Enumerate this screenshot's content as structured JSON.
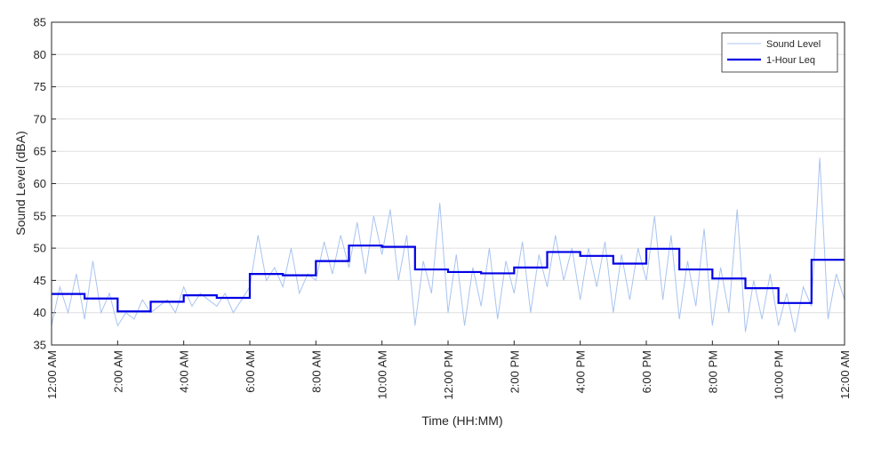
{
  "chart_data": {
    "type": "line",
    "xlabel": "Time (HH:MM)",
    "ylabel": "Sound Level (dBA)",
    "xlim": [
      0,
      24
    ],
    "ylim": [
      35,
      85
    ],
    "xticks": [
      {
        "value": 0,
        "label": "12:00 AM"
      },
      {
        "value": 2,
        "label": "2:00 AM"
      },
      {
        "value": 4,
        "label": "4:00 AM"
      },
      {
        "value": 6,
        "label": "6:00 AM"
      },
      {
        "value": 8,
        "label": "8:00 AM"
      },
      {
        "value": 10,
        "label": "10:00 AM"
      },
      {
        "value": 12,
        "label": "12:00 PM"
      },
      {
        "value": 14,
        "label": "2:00 PM"
      },
      {
        "value": 16,
        "label": "4:00 PM"
      },
      {
        "value": 18,
        "label": "6:00 PM"
      },
      {
        "value": 20,
        "label": "8:00 PM"
      },
      {
        "value": 22,
        "label": "10:00 PM"
      },
      {
        "value": 24,
        "label": "12:00 AM"
      }
    ],
    "yticks": [
      35,
      40,
      45,
      50,
      55,
      60,
      65,
      70,
      75,
      80,
      85
    ],
    "grid": "y",
    "legend": "upper right",
    "series": [
      {
        "name": "Sound Level",
        "color": "#a9c4f0",
        "width": 1,
        "step": false,
        "x": [
          0,
          0.25,
          0.5,
          0.75,
          1,
          1.25,
          1.5,
          1.75,
          2,
          2.25,
          2.5,
          2.75,
          3,
          3.25,
          3.5,
          3.75,
          4,
          4.25,
          4.5,
          4.75,
          5,
          5.25,
          5.5,
          5.75,
          6,
          6.25,
          6.5,
          6.75,
          7,
          7.25,
          7.5,
          7.75,
          8,
          8.25,
          8.5,
          8.75,
          9,
          9.25,
          9.5,
          9.75,
          10,
          10.25,
          10.5,
          10.75,
          11,
          11.25,
          11.5,
          11.75,
          12,
          12.25,
          12.5,
          12.75,
          13,
          13.25,
          13.5,
          13.75,
          14,
          14.25,
          14.5,
          14.75,
          15,
          15.25,
          15.5,
          15.75,
          16,
          16.25,
          16.5,
          16.75,
          17,
          17.25,
          17.5,
          17.75,
          18,
          18.25,
          18.5,
          18.75,
          19,
          19.25,
          19.5,
          19.75,
          20,
          20.25,
          20.5,
          20.75,
          21,
          21.25,
          21.5,
          21.75,
          22,
          22.25,
          22.5,
          22.75,
          23,
          23.25,
          23.5,
          23.75,
          24
        ],
        "values": [
          38,
          44,
          40,
          46,
          39,
          48,
          40,
          43,
          38,
          40,
          39,
          42,
          40,
          41,
          42,
          40,
          44,
          41,
          43,
          42,
          41,
          43,
          40,
          42,
          44,
          52,
          45,
          47,
          44,
          50,
          43,
          46,
          45,
          51,
          46,
          52,
          47,
          54,
          46,
          55,
          49,
          56,
          45,
          52,
          38,
          48,
          43,
          57,
          40,
          49,
          38,
          47,
          41,
          50,
          39,
          48,
          43,
          51,
          40,
          49,
          44,
          52,
          45,
          50,
          42,
          50,
          44,
          51,
          40,
          49,
          42,
          50,
          45,
          55,
          42,
          52,
          39,
          48,
          41,
          53,
          38,
          47,
          40,
          56,
          37,
          45,
          39,
          46,
          38,
          43,
          37,
          44,
          41,
          64,
          39,
          46,
          42
        ]
      },
      {
        "name": "1-Hour Leq",
        "color": "#0000e6",
        "width": 2.2,
        "step": true,
        "x": [
          0,
          1,
          2,
          3,
          4,
          5,
          6,
          7,
          8,
          9,
          10,
          11,
          12,
          13,
          14,
          15,
          16,
          17,
          18,
          19,
          20,
          21,
          22,
          23
        ],
        "values": [
          42.9,
          42.2,
          40.2,
          41.7,
          42.7,
          42.3,
          46.0,
          45.8,
          48.0,
          50.4,
          50.2,
          46.7,
          46.3,
          46.1,
          47.0,
          49.4,
          48.8,
          47.6,
          49.9,
          46.7,
          45.3,
          43.8,
          41.5,
          48.2
        ]
      }
    ]
  }
}
